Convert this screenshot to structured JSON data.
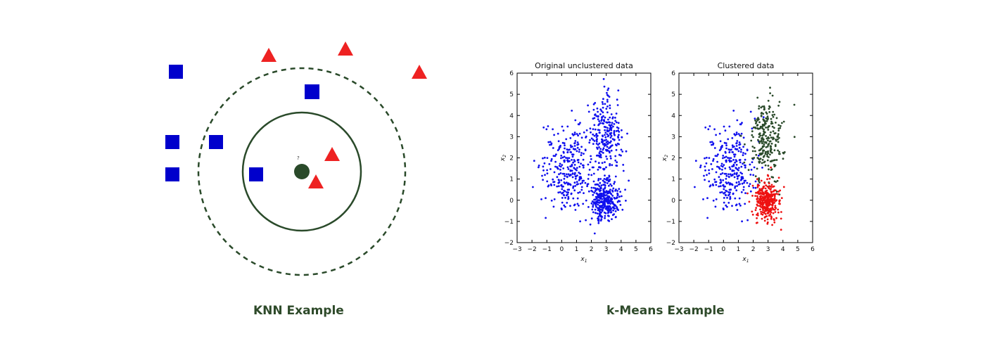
{
  "knn": {
    "caption": "KNN Example",
    "query_label": "?",
    "colors": {
      "class_a": "#0000cc",
      "class_b": "#ee2222",
      "query": "#2a4a2a",
      "circle": "#2a4a2a"
    }
  },
  "kmeans": {
    "caption": "k-Means Example"
  },
  "chart_data": [
    {
      "type": "scatter",
      "title": "Original unclustered data",
      "xlabel": "x_1",
      "ylabel": "x_2",
      "xlim": [
        -3,
        6
      ],
      "ylim": [
        -2,
        6
      ],
      "xticks": [
        "-3",
        "-2",
        "-1",
        "0",
        "1",
        "2",
        "3",
        "4",
        "5",
        "6"
      ],
      "yticks": [
        "-2",
        "-1",
        "0",
        "1",
        "2",
        "3",
        "4",
        "5",
        "6"
      ],
      "series": [
        {
          "color": "#1010ee",
          "clusters": [
            {
              "center": [
                0.4,
                1.5
              ],
              "spread": [
                0.85,
                1.0
              ],
              "count": 300
            },
            {
              "center": [
                2.9,
                2.9
              ],
              "spread": [
                0.55,
                0.95
              ],
              "count": 260
            },
            {
              "center": [
                2.9,
                0.0
              ],
              "spread": [
                0.45,
                0.45
              ],
              "count": 330
            }
          ]
        }
      ]
    },
    {
      "type": "scatter",
      "title": "Clustered data",
      "xlabel": "x_1",
      "ylabel": "x_2",
      "xlim": [
        -3,
        6
      ],
      "ylim": [
        -2,
        6
      ],
      "xticks": [
        "-3",
        "-2",
        "-1",
        "0",
        "1",
        "2",
        "3",
        "4",
        "5",
        "6"
      ],
      "yticks": [
        "-2",
        "-1",
        "0",
        "1",
        "2",
        "3",
        "4",
        "5",
        "6"
      ],
      "series": [
        {
          "color": "#1010ee",
          "clusters": [
            {
              "center": [
                0.4,
                1.5
              ],
              "spread": [
                0.85,
                1.0
              ],
              "count": 300
            }
          ]
        },
        {
          "color": "#2a4a2a",
          "clusters": [
            {
              "center": [
                2.9,
                2.9
              ],
              "spread": [
                0.55,
                0.95
              ],
              "count": 260
            }
          ]
        },
        {
          "color": "#ee1111",
          "clusters": [
            {
              "center": [
                2.9,
                0.0
              ],
              "spread": [
                0.45,
                0.45
              ],
              "count": 330
            }
          ]
        }
      ]
    }
  ]
}
